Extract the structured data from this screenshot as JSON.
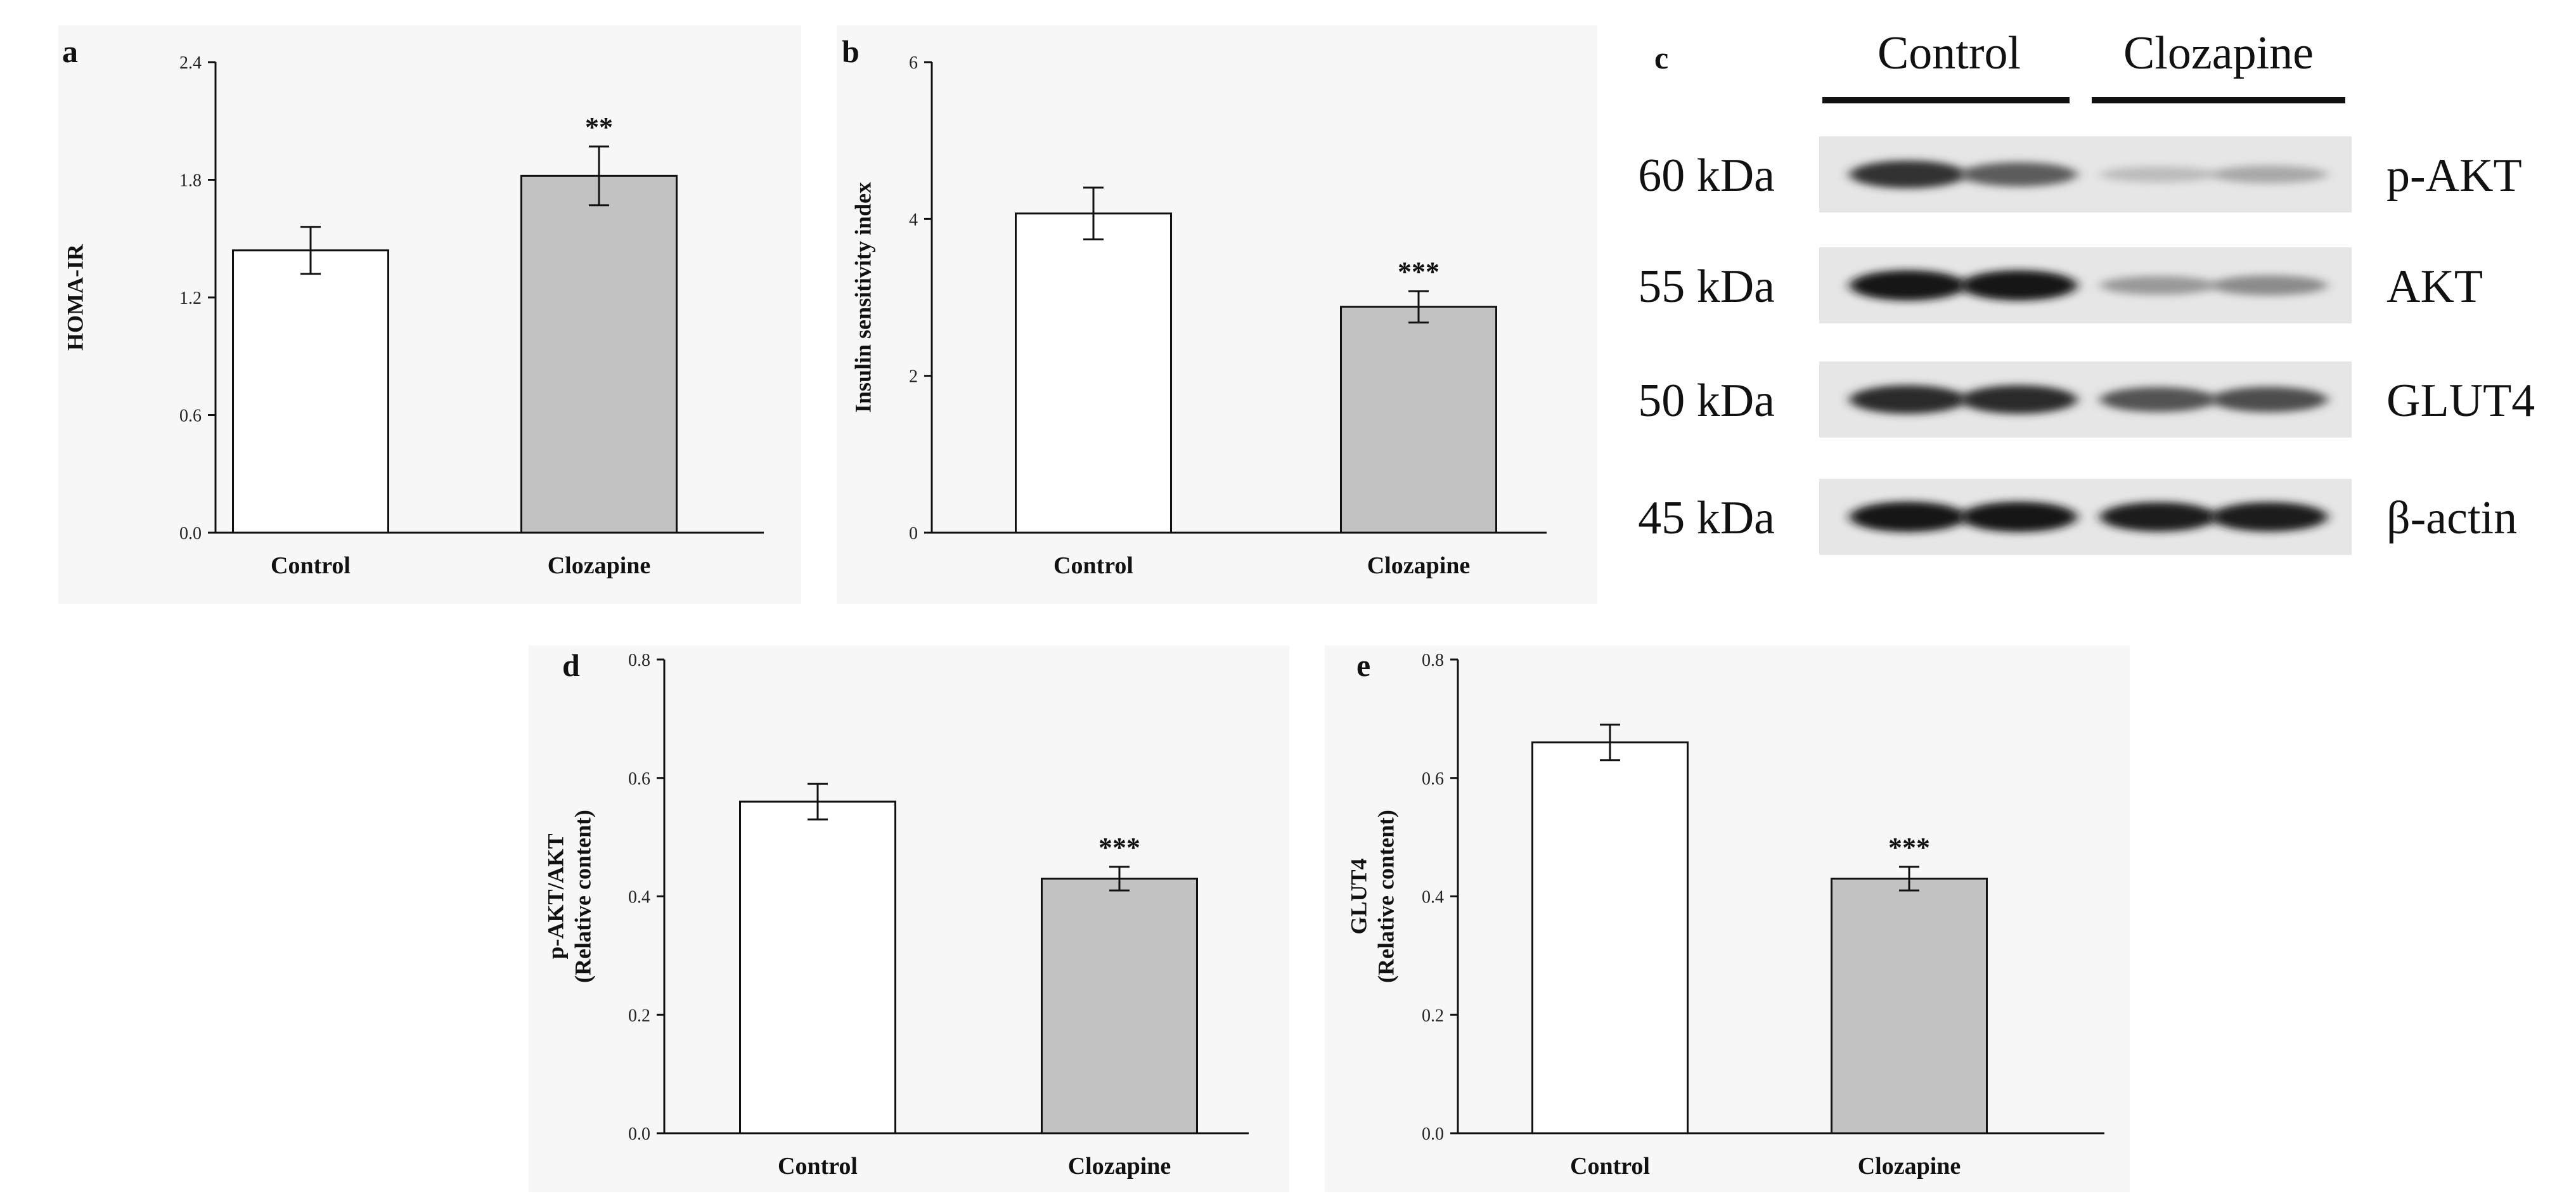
{
  "chart_data": [
    {
      "panel": "a",
      "type": "bar",
      "categories": [
        "Control",
        "Clozapine"
      ],
      "values": [
        1.44,
        1.82
      ],
      "errors": [
        0.12,
        0.15
      ],
      "significance": [
        "",
        "**"
      ],
      "ylabel": "HOMA-IR",
      "ylim": [
        0,
        2.4
      ],
      "yticks": [
        "0.0",
        "0.6",
        "1.2",
        "1.8",
        "2.4"
      ],
      "bar_colors": [
        "#ffffff",
        "#c2c2c2"
      ]
    },
    {
      "panel": "b",
      "type": "bar",
      "categories": [
        "Control",
        "Clozapine"
      ],
      "values": [
        4.07,
        2.88
      ],
      "errors": [
        0.33,
        0.2
      ],
      "significance": [
        "",
        "***"
      ],
      "ylabel": "Insulin sensitivity index",
      "ylim": [
        0,
        6
      ],
      "yticks": [
        "0",
        "2",
        "4",
        "6"
      ],
      "bar_colors": [
        "#ffffff",
        "#c2c2c2"
      ]
    },
    {
      "panel": "d",
      "type": "bar",
      "categories": [
        "Control",
        "Clozapine"
      ],
      "values": [
        0.56,
        0.43
      ],
      "errors": [
        0.03,
        0.02
      ],
      "significance": [
        "",
        "***"
      ],
      "ylabel": "p-AKT/AKT",
      "ylabel2": "(Relative content)",
      "ylim": [
        0,
        0.8
      ],
      "yticks": [
        "0.0",
        "0.2",
        "0.4",
        "0.6",
        "0.8"
      ],
      "bar_colors": [
        "#ffffff",
        "#c2c2c2"
      ]
    },
    {
      "panel": "e",
      "type": "bar",
      "categories": [
        "Control",
        "Clozapine"
      ],
      "values": [
        0.66,
        0.43
      ],
      "errors": [
        0.03,
        0.02
      ],
      "significance": [
        "",
        "***"
      ],
      "ylabel": "GLUT4",
      "ylabel2": "(Relative content)",
      "ylim": [
        0,
        0.8
      ],
      "yticks": [
        "0.0",
        "0.2",
        "0.4",
        "0.6",
        "0.8"
      ],
      "bar_colors": [
        "#ffffff",
        "#c2c2c2"
      ]
    }
  ],
  "blot": {
    "panel": "c",
    "groups": [
      "Control",
      "Clozapine"
    ],
    "rows": [
      {
        "size": "60 kDa",
        "protein": "p-AKT",
        "intensity": [
          0.85,
          0.65,
          0.18,
          0.28
        ]
      },
      {
        "size": "55 kDa",
        "protein": "AKT",
        "intensity": [
          1.0,
          1.0,
          0.35,
          0.42
        ]
      },
      {
        "size": "50 kDa",
        "protein": "GLUT4",
        "intensity": [
          0.9,
          0.9,
          0.7,
          0.72
        ]
      },
      {
        "size": "45 kDa",
        "protein": "β-actin",
        "intensity": [
          1.0,
          1.0,
          0.95,
          0.95
        ]
      }
    ]
  }
}
